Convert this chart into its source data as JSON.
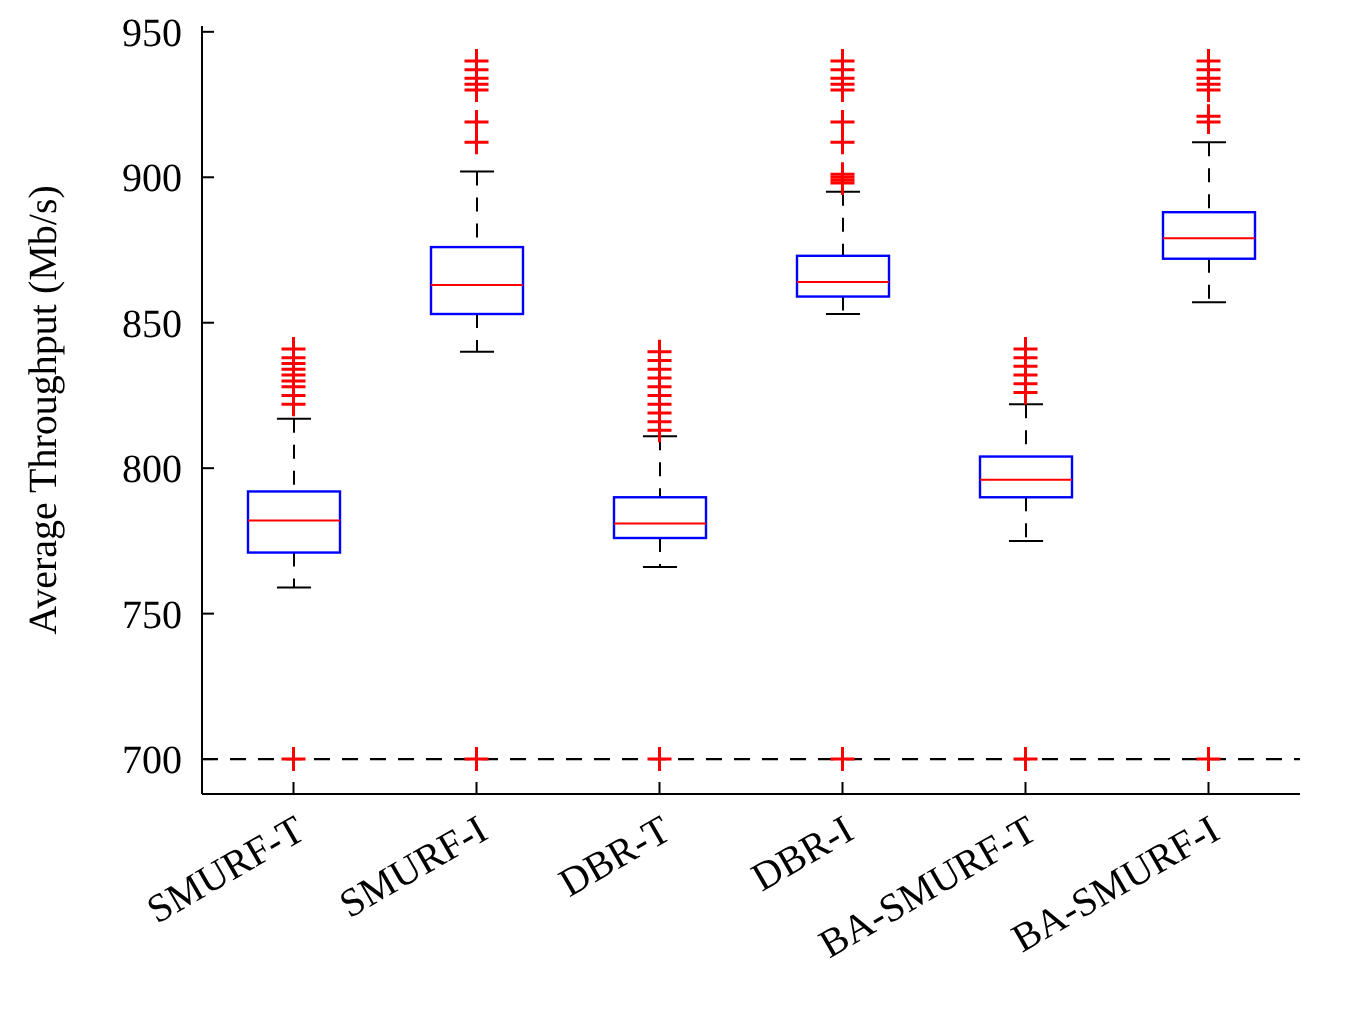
{
  "chart_data": {
    "type": "box",
    "ylabel": "Average Throughput (Mb/s)",
    "categories": [
      "SMURF-T",
      "SMURF-I",
      "DBR-T",
      "DBR-I",
      "BA-SMURF-T",
      "BA-SMURF-I"
    ],
    "ylim": [
      688,
      952
    ],
    "yticks": [
      700,
      750,
      800,
      850,
      900,
      950
    ],
    "marker": "cross",
    "ref_lines": [
      {
        "axis": "y",
        "value": 700,
        "color": "#000000",
        "line_style": "dashed"
      }
    ],
    "series": [
      {
        "color": "#0000ff",
        "boxes": [
          {
            "low": 759,
            "q1": 771,
            "median": 782,
            "q3": 792,
            "high": 817,
            "outliers": [
              700,
              822,
              825,
              828,
              830,
              832,
              834,
              836,
              838,
              841
            ]
          },
          {
            "low": 840,
            "q1": 853,
            "median": 863,
            "q3": 876,
            "high": 902,
            "outliers": [
              700,
              912,
              919,
              930,
              932,
              934,
              937,
              940
            ]
          },
          {
            "low": 766,
            "q1": 776,
            "median": 781,
            "q3": 790,
            "high": 811,
            "outliers": [
              700,
              813,
              816,
              819,
              822,
              825,
              828,
              831,
              834,
              837,
              840
            ]
          },
          {
            "low": 853,
            "q1": 859,
            "median": 864,
            "q3": 873,
            "high": 895,
            "outliers": [
              700,
              898,
              899,
              900,
              901,
              912,
              919,
              930,
              932,
              934,
              937,
              940
            ]
          },
          {
            "low": 775,
            "q1": 790,
            "median": 796,
            "q3": 804,
            "high": 822,
            "outliers": [
              700,
              826,
              829,
              832,
              835,
              838,
              841
            ]
          },
          {
            "low": 857,
            "q1": 872,
            "median": 879,
            "q3": 888,
            "high": 912,
            "outliers": [
              700,
              919,
              921,
              930,
              932,
              934,
              937,
              940
            ]
          }
        ]
      }
    ]
  }
}
